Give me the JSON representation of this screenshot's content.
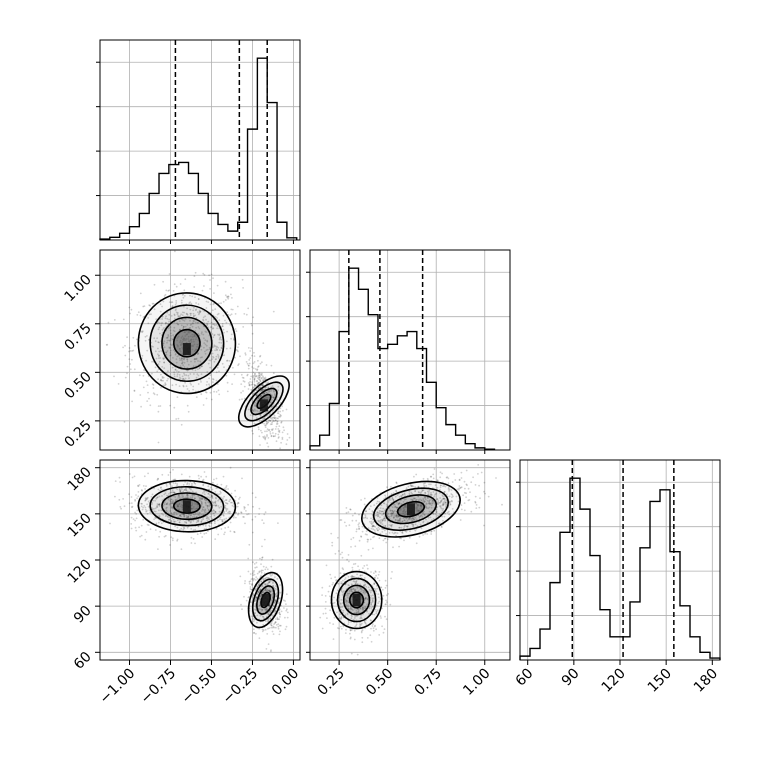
{
  "chart_data": {
    "type": "corner",
    "grid": true,
    "parameters": [
      {
        "name": "",
        "range": [
          -1.18,
          0.04
        ],
        "ticks": [
          -1.0,
          -0.75,
          -0.5,
          -0.25,
          0.0
        ],
        "tick_labels": [
          "−1.00",
          "−0.75",
          "−0.50",
          "−0.25",
          "0.00"
        ],
        "quantiles": [
          -0.72,
          -0.33,
          -0.16
        ]
      },
      {
        "name": "",
        "range": [
          0.1,
          1.13
        ],
        "ticks": [
          0.25,
          0.5,
          0.75,
          1.0
        ],
        "tick_labels": [
          "0.25",
          "0.50",
          "0.75",
          "1.00"
        ],
        "quantiles": [
          0.3,
          0.46,
          0.68
        ]
      },
      {
        "name": "",
        "range": [
          55,
          185
        ],
        "ticks": [
          60,
          90,
          120,
          150,
          180
        ],
        "tick_labels": [
          "60",
          "90",
          "120",
          "150",
          "180"
        ],
        "quantiles": [
          89,
          122,
          155
        ]
      }
    ],
    "histograms": [
      {
        "param": 0,
        "bin_width": 0.06,
        "edges": [
          -1.18,
          -1.12,
          -1.06,
          -1.0,
          -0.94,
          -0.88,
          -0.82,
          -0.76,
          -0.7,
          -0.64,
          -0.58,
          -0.52,
          -0.46,
          -0.4,
          -0.34,
          -0.28,
          -0.22,
          -0.16,
          -0.1,
          -0.04,
          0.02
        ],
        "counts": [
          0.2,
          0.6,
          1.5,
          3.0,
          6.0,
          10.5,
          15.0,
          17.0,
          17.5,
          15.0,
          10.5,
          6.0,
          3.5,
          2.0,
          4.0,
          25.0,
          41.0,
          31.0,
          4.0,
          0.5
        ]
      },
      {
        "param": 1,
        "bin_width": 0.05,
        "edges": [
          0.1,
          0.15,
          0.2,
          0.25,
          0.3,
          0.35,
          0.4,
          0.45,
          0.5,
          0.55,
          0.6,
          0.65,
          0.7,
          0.75,
          0.8,
          0.85,
          0.9,
          0.95,
          1.0,
          1.05
        ],
        "counts": [
          1.0,
          3.5,
          11.0,
          28.0,
          43.0,
          38.0,
          32.0,
          24.0,
          25.0,
          27.0,
          28.0,
          24.0,
          16.0,
          10.0,
          6.0,
          3.5,
          1.5,
          0.5,
          0.2
        ]
      },
      {
        "param": 2,
        "bin_width": 6.5,
        "edges": [
          55,
          61.5,
          68,
          74.5,
          81,
          87.5,
          94,
          100.5,
          107,
          113.5,
          120,
          126.5,
          133,
          139.5,
          146,
          152.5,
          159,
          165.5,
          172,
          178.5,
          185
        ],
        "counts": [
          1.0,
          3.0,
          8.0,
          20.0,
          33.0,
          47.0,
          39.0,
          27.0,
          13.0,
          6.0,
          6.0,
          15.0,
          29.0,
          41.0,
          44.0,
          28.0,
          14.0,
          6.0,
          2.0,
          0.5
        ]
      }
    ],
    "scatter_panels": [
      {
        "x_param": 0,
        "y_param": 1,
        "clusters": [
          {
            "center": [
              -0.65,
              0.65
            ],
            "spread": [
              0.16,
              0.14
            ],
            "correlation": 0.1,
            "n": 900
          },
          {
            "center": [
              -0.18,
              0.35
            ],
            "spread": [
              0.05,
              0.09
            ],
            "correlation": -0.55,
            "n": 600
          }
        ],
        "density_peaks": [
          [
            -0.65,
            0.62
          ],
          [
            -0.18,
            0.33
          ]
        ]
      },
      {
        "x_param": 0,
        "y_param": 2,
        "clusters": [
          {
            "center": [
              -0.65,
              155
            ],
            "spread": [
              0.16,
              9
            ],
            "correlation": -0.05,
            "n": 900
          },
          {
            "center": [
              -0.17,
              94
            ],
            "spread": [
              0.05,
              10
            ],
            "correlation": -0.2,
            "n": 600
          }
        ],
        "density_peaks": [
          [
            -0.65,
            155
          ],
          [
            -0.17,
            94
          ]
        ]
      },
      {
        "x_param": 1,
        "y_param": 2,
        "clusters": [
          {
            "center": [
              0.62,
              153
            ],
            "spread": [
              0.14,
              9
            ],
            "correlation": 0.55,
            "n": 900
          },
          {
            "center": [
              0.34,
              94
            ],
            "spread": [
              0.07,
              10
            ],
            "correlation": 0.0,
            "n": 600
          }
        ],
        "density_peaks": [
          [
            0.62,
            153
          ],
          [
            0.34,
            94
          ]
        ]
      }
    ]
  },
  "colors": {
    "ink": "#000000",
    "grid": "#b0b0b0",
    "density_shade": "#4a4a4a"
  }
}
